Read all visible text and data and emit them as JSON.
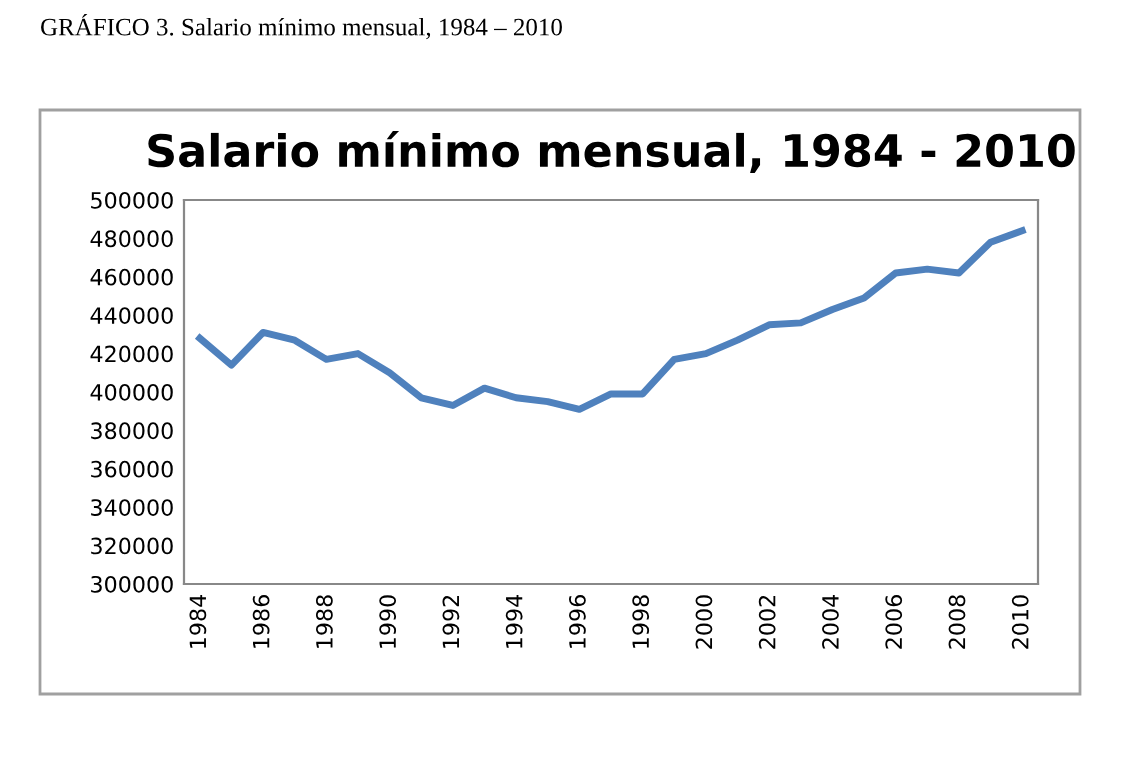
{
  "chart_data": {
    "type": "line",
    "title": "Salario mínimo mensual, 1984 - 2010",
    "annotations": [
      "GRÁFICO 3. Salario mínimo mensual, 1984 – 2010"
    ],
    "categories": [
      "1984",
      null,
      "1986",
      null,
      "1988",
      null,
      "1990",
      null,
      "1992",
      null,
      "1994",
      null,
      "1996",
      null,
      "1998",
      null,
      "2000",
      null,
      "2002",
      null,
      "2004",
      null,
      "2006",
      null,
      "2008",
      null,
      "2010"
    ],
    "series": [
      {
        "color": "#4f81bd",
        "values": [
          428000,
          414000,
          431000,
          427000,
          417000,
          420000,
          410000,
          397000,
          393000,
          402000,
          397000,
          395000,
          391000,
          399000,
          399000,
          417000,
          420000,
          427000,
          435000,
          436000,
          443000,
          449000,
          462000,
          464000,
          462000,
          478000,
          484000
        ]
      }
    ],
    "ylim": [
      300000,
      500000
    ],
    "yticks": [
      300000,
      320000,
      340000,
      360000,
      380000,
      400000,
      420000,
      440000,
      460000,
      480000,
      500000
    ],
    "grid": false,
    "legend": false,
    "marker": "none",
    "line_style": "solid"
  }
}
